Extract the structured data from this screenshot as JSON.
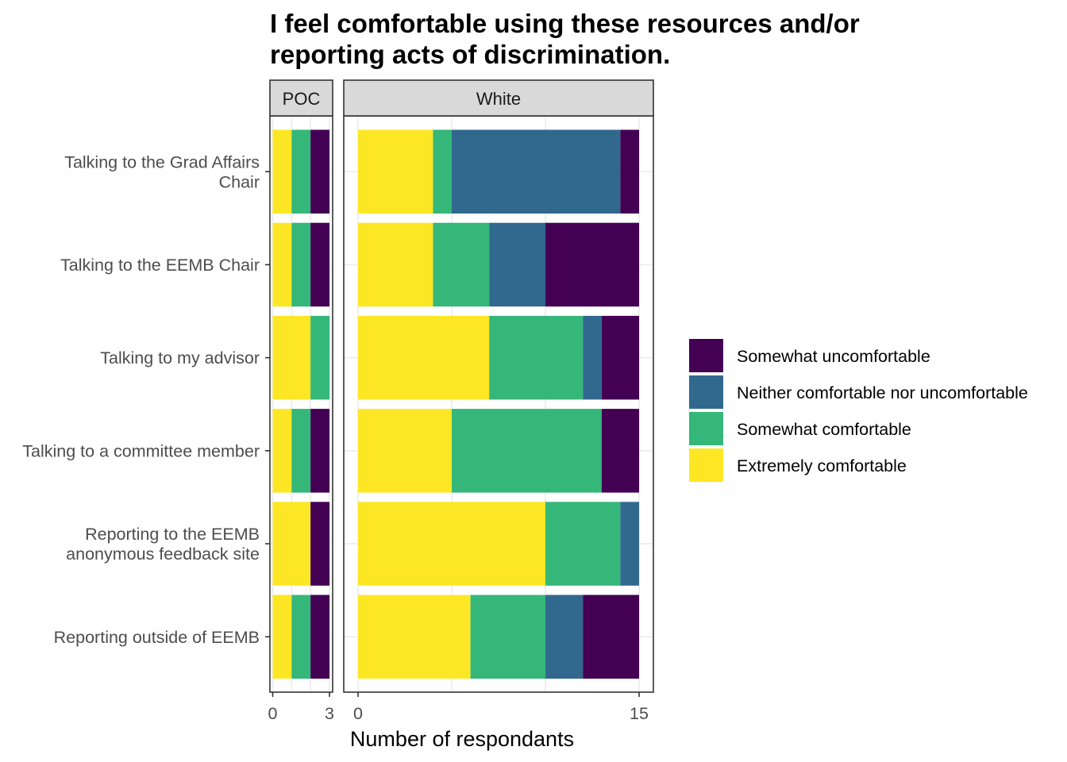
{
  "chart_data": {
    "type": "bar",
    "orientation": "horizontal",
    "stacked": true,
    "title": "I feel comfortable using these resources and/or reporting acts of discrimination.",
    "title_lines": [
      "I feel comfortable using these resources and/or",
      "reporting acts of discrimination."
    ],
    "xlabel": "Number of respondants",
    "ylabel": "",
    "grid": true,
    "legend_position": "right",
    "categories": [
      "Talking to the Grad Affairs Chair",
      "Talking to the EEMB Chair",
      "Talking to my advisor",
      "Talking to a committee member",
      "Reporting to the EEMB anonymous feedback site",
      "Reporting outside of EEMB"
    ],
    "category_lines": [
      [
        "Talking to the Grad Affairs",
        "Chair"
      ],
      [
        "Talking to the EEMB Chair"
      ],
      [
        "Talking to my advisor"
      ],
      [
        "Talking to a committee member"
      ],
      [
        "Reporting to the EEMB",
        "anonymous feedback site"
      ],
      [
        "Reporting outside of EEMB"
      ]
    ],
    "stack_order": [
      "Extremely comfortable",
      "Somewhat comfortable",
      "Neither comfortable nor uncomfortable",
      "Somewhat uncomfortable"
    ],
    "legend": [
      {
        "name": "Somewhat uncomfortable",
        "color": "#440154"
      },
      {
        "name": "Neither comfortable nor uncomfortable",
        "color": "#31688E"
      },
      {
        "name": "Somewhat comfortable",
        "color": "#35B779"
      },
      {
        "name": "Extremely comfortable",
        "color": "#FDE725"
      }
    ],
    "panels": [
      {
        "label": "POC",
        "xlim": [
          0,
          3
        ],
        "ticks": [
          0,
          3
        ],
        "series": [
          {
            "name": "Extremely comfortable",
            "values": [
              1,
              1,
              2,
              1,
              2,
              1
            ]
          },
          {
            "name": "Somewhat comfortable",
            "values": [
              1,
              1,
              1,
              1,
              0,
              1
            ]
          },
          {
            "name": "Neither comfortable nor uncomfortable",
            "values": [
              0,
              0,
              0,
              0,
              0,
              0
            ]
          },
          {
            "name": "Somewhat uncomfortable",
            "values": [
              1,
              1,
              0,
              1,
              1,
              1
            ]
          }
        ]
      },
      {
        "label": "White",
        "xlim": [
          0,
          15
        ],
        "ticks": [
          0,
          15
        ],
        "series": [
          {
            "name": "Extremely comfortable",
            "values": [
              4,
              4,
              7,
              5,
              10,
              6
            ]
          },
          {
            "name": "Somewhat comfortable",
            "values": [
              1,
              3,
              5,
              8,
              4,
              4
            ]
          },
          {
            "name": "Neither comfortable nor uncomfortable",
            "values": [
              9,
              3,
              1,
              0,
              1,
              2
            ]
          },
          {
            "name": "Somewhat uncomfortable",
            "values": [
              1,
              5,
              2,
              2,
              0,
              3
            ]
          }
        ]
      }
    ]
  }
}
